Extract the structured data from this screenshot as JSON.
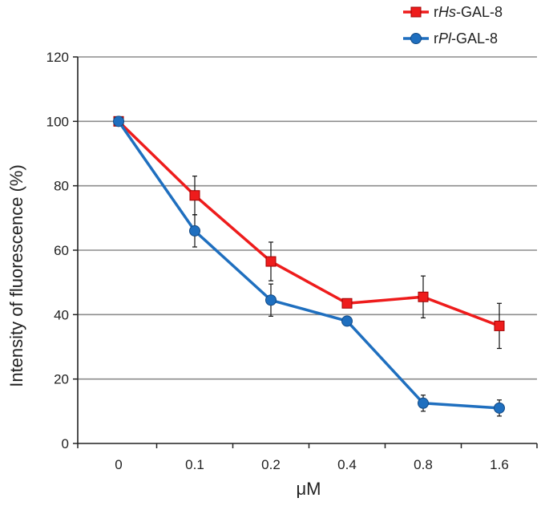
{
  "chart_data": {
    "type": "line",
    "categories": [
      "0",
      "0.1",
      "0.2",
      "0.4",
      "0.8",
      "1.6"
    ],
    "xlabel": "μM",
    "ylabel": "Intensity of fluorescence  (%)",
    "ylim": [
      0,
      120
    ],
    "yticks": [
      0,
      20,
      40,
      60,
      80,
      100,
      120
    ],
    "grid": true,
    "legend_position": "top-right",
    "series": [
      {
        "name_parts": [
          "r",
          "Hs",
          "-GAL-8"
        ],
        "marker": "square",
        "color": "#ee1c1c",
        "values": [
          100,
          77,
          56.5,
          43.5,
          45.5,
          36.5
        ],
        "errors": [
          0,
          6,
          6,
          0,
          6.5,
          7
        ]
      },
      {
        "name_parts": [
          "r",
          "Pl",
          "-GAL-8"
        ],
        "marker": "circle",
        "color": "#1f6fbf",
        "values": [
          100,
          66,
          44.5,
          38,
          12.5,
          11
        ],
        "errors": [
          0,
          5,
          5,
          0,
          2.5,
          2.5
        ]
      }
    ]
  }
}
